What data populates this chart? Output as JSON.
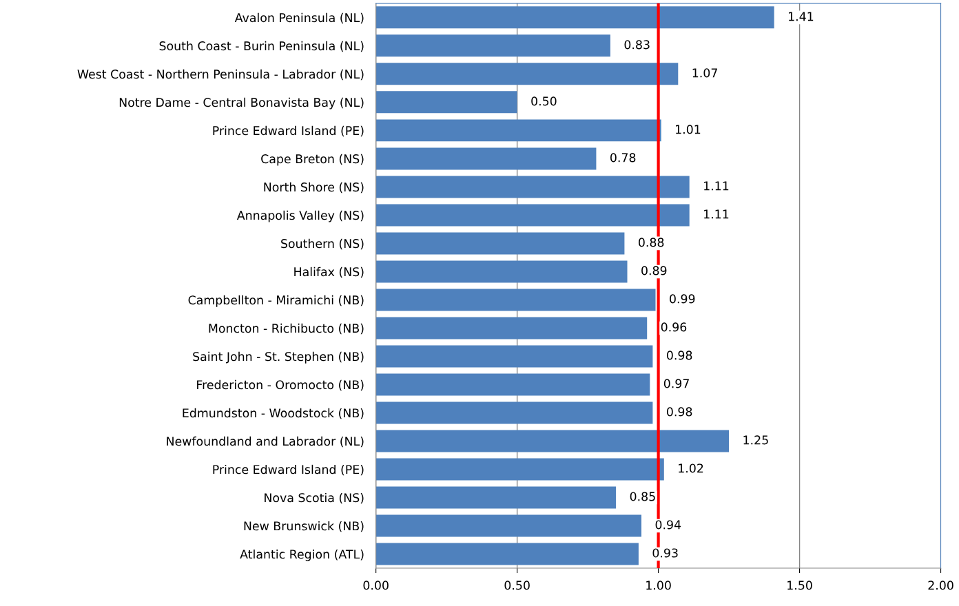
{
  "chart_data": {
    "type": "bar",
    "orientation": "horizontal",
    "categories": [
      "Avalon Peninsula (NL)",
      "South Coast - Burin Peninsula (NL)",
      "West Coast - Northern Peninsula - Labrador (NL)",
      "Notre Dame - Central Bonavista Bay (NL)",
      "Prince Edward Island (PE)",
      "Cape Breton (NS)",
      "North Shore (NS)",
      "Annapolis Valley (NS)",
      "Southern (NS)",
      "Halifax (NS)",
      "Campbellton - Miramichi (NB)",
      "Moncton - Richibucto (NB)",
      "Saint John - St. Stephen (NB)",
      "Fredericton - Oromocto (NB)",
      "Edmundston - Woodstock (NB)",
      "Newfoundland and Labrador (NL)",
      "Prince Edward Island (PE)",
      "Nova Scotia (NS)",
      "New Brunswick (NB)",
      "Atlantic Region (ATL)"
    ],
    "values": [
      1.41,
      0.83,
      1.07,
      0.5,
      1.01,
      0.78,
      1.11,
      1.11,
      0.88,
      0.89,
      0.99,
      0.96,
      0.98,
      0.97,
      0.98,
      1.25,
      1.02,
      0.85,
      0.94,
      0.93
    ],
    "value_labels": [
      "1.41",
      "0.83",
      "1.07",
      "0.50",
      "1.01",
      "0.78",
      "1.11",
      "1.11",
      "0.88",
      "0.89",
      "0.99",
      "0.96",
      "0.98",
      "0.97",
      "0.98",
      "1.25",
      "1.02",
      "0.85",
      "0.94",
      "0.93"
    ],
    "color": "#4f81bd",
    "xlim": [
      0,
      2
    ],
    "xticks": [
      {
        "value": 0,
        "label": "0.00"
      },
      {
        "value": 0.5,
        "label": "0.50"
      },
      {
        "value": 1,
        "label": "1.00"
      },
      {
        "value": 1.5,
        "label": "1.50"
      },
      {
        "value": 2,
        "label": "2.00"
      }
    ],
    "grid": "x",
    "ref_lines": [
      {
        "axis": "x",
        "value": 1,
        "color": "#ff0000"
      }
    ]
  }
}
